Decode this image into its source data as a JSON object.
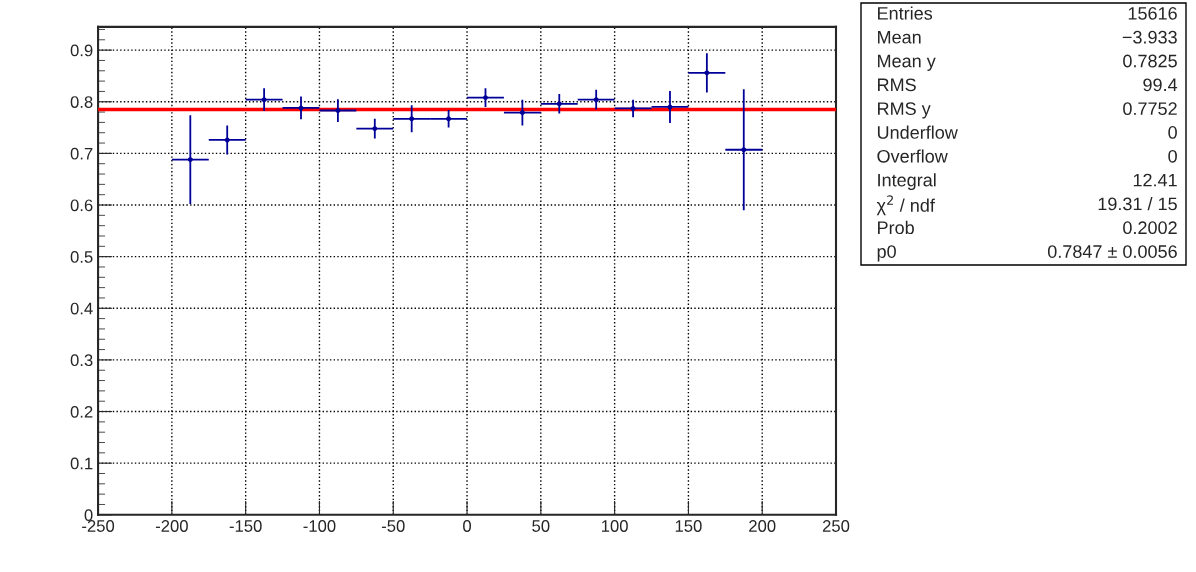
{
  "chart_data": {
    "type": "scatter",
    "xlim": [
      -250,
      250
    ],
    "xticks": [
      -250,
      -200,
      -150,
      -100,
      -50,
      0,
      50,
      100,
      150,
      200,
      250
    ],
    "ylim": [
      0,
      0.945
    ],
    "yticks": [
      0,
      0.1,
      0.2,
      0.3,
      0.4,
      0.5,
      0.6,
      0.7,
      0.8,
      0.9
    ],
    "grid": true,
    "series": [
      {
        "color": "#000099",
        "x": [
          -187.5,
          -162.5,
          -137.5,
          -112.5,
          -87.5,
          -62.5,
          -37.5,
          -12.5,
          12.5,
          37.5,
          62.5,
          87.5,
          112.5,
          137.5,
          162.5,
          187.5
        ],
        "values": [
          0.688,
          0.726,
          0.804,
          0.788,
          0.783,
          0.748,
          0.767,
          0.767,
          0.808,
          0.779,
          0.796,
          0.804,
          0.787,
          0.79,
          0.856,
          0.707
        ],
        "errors": [
          0.086,
          0.028,
          0.022,
          0.022,
          0.022,
          0.019,
          0.026,
          0.017,
          0.018,
          0.025,
          0.019,
          0.019,
          0.017,
          0.031,
          0.038,
          0.117
        ],
        "xerrors": [
          12.5,
          12.5,
          12.5,
          12.5,
          12.5,
          12.5,
          12.5,
          12.5,
          12.5,
          12.5,
          12.5,
          12.5,
          12.5,
          12.5,
          12.5,
          12.5
        ]
      },
      {
        "type": "line",
        "color": "#ff0000",
        "x": [
          -250,
          250
        ],
        "values": [
          0.785,
          0.785
        ]
      }
    ],
    "annotations": [
      "Entries",
      "15616",
      "Mean",
      "−3.933",
      "Mean y",
      "0.7825",
      "RMS",
      "99.4",
      "RMS y",
      "0.7752",
      "Underflow",
      "0",
      "Overflow",
      "0",
      "Integral",
      "12.41",
      "χ$^{2}$ / ndf",
      "19.31 / 15",
      "Prob",
      "0.2002",
      "p0",
      "0.7847 ± 0.0056"
    ]
  }
}
